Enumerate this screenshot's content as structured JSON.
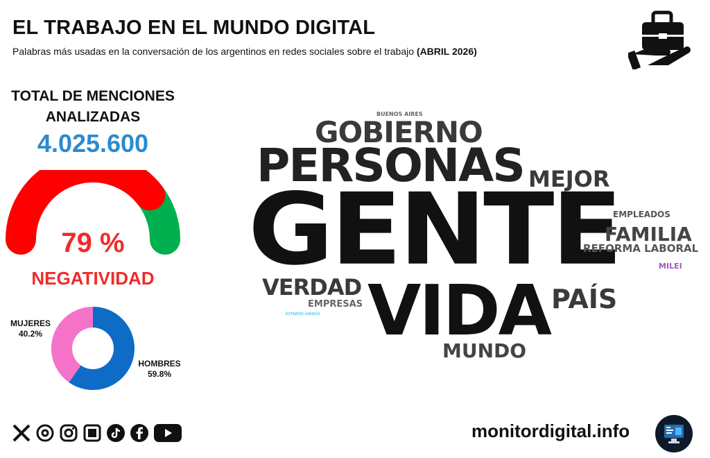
{
  "header": {
    "title": "EL TRABAJO EN EL MUNDO DIGITAL",
    "subtitle": "Palabras más usadas en la conversación de los argentinos en redes sociales sobre el trabajo",
    "subtitle_period": "(ABRIL 2026)"
  },
  "stats": {
    "total_label": "TOTAL DE MENCIONES ANALIZADAS",
    "total_value": "4.025.600",
    "negativity_pct": "79 %",
    "negativity_label": "NEGATIVIDAD",
    "negativity_value": 79,
    "colors": {
      "negative": "#ff0000",
      "positive": "#00b04f",
      "total": "#2a8bd0"
    }
  },
  "gender": {
    "women_label": "MUJERES",
    "women_pct": "40.2%",
    "men_label": "HOMBRES",
    "men_pct": "59.8%",
    "colors": {
      "women": "#f472c8",
      "men": "#0f6cc6"
    }
  },
  "word_cloud": [
    {
      "word": "GENTE",
      "color": "#111111"
    },
    {
      "word": "VIDA",
      "color": "#111111"
    },
    {
      "word": "PERSONAS",
      "color": "#222222"
    },
    {
      "word": "GOBIERNO",
      "color": "#3a3a3a"
    },
    {
      "word": "MEJOR",
      "color": "#3a3a3a"
    },
    {
      "word": "VERDAD",
      "color": "#3a3a3a"
    },
    {
      "word": "PAÍS",
      "color": "#3a3a3a"
    },
    {
      "word": "FAMILIA",
      "color": "#444444"
    },
    {
      "word": "MUNDO",
      "color": "#444444"
    },
    {
      "word": "REFORMA LABORAL",
      "color": "#555555"
    },
    {
      "word": "EMPLEADOS",
      "color": "#555555"
    },
    {
      "word": "EMPRESAS",
      "color": "#666666"
    },
    {
      "word": "BUENOS AIRES",
      "color": "#666666"
    },
    {
      "word": "MILEI",
      "color": "#a455c4"
    },
    {
      "word": "ESTADOS UNIDOS",
      "color": "#5ad3e6"
    }
  ],
  "footer": {
    "website": "monitordigital.info",
    "social_icons": [
      "x-icon",
      "threads-icon",
      "instagram-icon",
      "tabloid-icon",
      "tiktok-icon",
      "facebook-icon",
      "youtube-icon"
    ]
  }
}
